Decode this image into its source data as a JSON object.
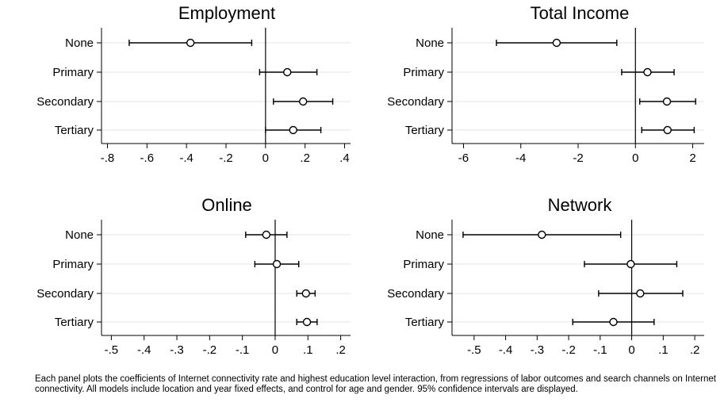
{
  "note": "Each panel plots the coefficients of Internet connectivity rate and highest education level interaction, from regressions of labor outcomes and search channels on Internet connectivity. All models include location and year fixed effects, and control for age and gender. 95% confidence intervals are displayed.",
  "chart_data": [
    {
      "type": "scatter",
      "subtype": "coefficient-plot",
      "title": "Employment",
      "categories": [
        "None",
        "Primary",
        "Secondary",
        "Tertiary"
      ],
      "estimates": [
        -0.38,
        0.11,
        0.19,
        0.14
      ],
      "ci_low": [
        -0.69,
        -0.03,
        0.04,
        0.0
      ],
      "ci_high": [
        -0.07,
        0.26,
        0.34,
        0.28
      ],
      "xlim": [
        -0.83,
        0.43
      ],
      "xticks": [
        -0.8,
        -0.6,
        -0.4,
        -0.2,
        0,
        0.2,
        0.4
      ],
      "xtick_labels": [
        "-.8",
        "-.6",
        "-.4",
        "-.2",
        "0",
        ".2",
        ".4"
      ],
      "reference_line": 0,
      "grid": "horizontal"
    },
    {
      "type": "scatter",
      "subtype": "coefficient-plot",
      "title": "Total Income",
      "categories": [
        "None",
        "Primary",
        "Secondary",
        "Tertiary"
      ],
      "estimates": [
        -2.75,
        0.42,
        1.1,
        1.12
      ],
      "ci_low": [
        -4.85,
        -0.48,
        0.15,
        0.22
      ],
      "ci_high": [
        -0.65,
        1.35,
        2.1,
        2.05
      ],
      "xlim": [
        -6.4,
        2.4
      ],
      "xticks": [
        -6,
        -4,
        -2,
        0,
        2
      ],
      "xtick_labels": [
        "-6",
        "-4",
        "-2",
        "0",
        "2"
      ],
      "reference_line": 0,
      "grid": "horizontal"
    },
    {
      "type": "scatter",
      "subtype": "coefficient-plot",
      "title": "Online",
      "categories": [
        "None",
        "Primary",
        "Secondary",
        "Tertiary"
      ],
      "estimates": [
        -0.027,
        0.005,
        0.094,
        0.097
      ],
      "ci_low": [
        -0.09,
        -0.062,
        0.066,
        0.066
      ],
      "ci_high": [
        0.036,
        0.072,
        0.122,
        0.128
      ],
      "xlim": [
        -0.53,
        0.23
      ],
      "xticks": [
        -0.5,
        -0.4,
        -0.3,
        -0.2,
        -0.1,
        0,
        0.1,
        0.2
      ],
      "xtick_labels": [
        "-.5",
        "-.4",
        "-.3",
        "-.2",
        "-.1",
        "0",
        ".1",
        ".2"
      ],
      "reference_line": 0,
      "grid": "horizontal"
    },
    {
      "type": "scatter",
      "subtype": "coefficient-plot",
      "title": "Network",
      "categories": [
        "None",
        "Primary",
        "Secondary",
        "Tertiary"
      ],
      "estimates": [
        -0.285,
        -0.003,
        0.027,
        -0.058
      ],
      "ci_low": [
        -0.535,
        -0.15,
        -0.105,
        -0.187
      ],
      "ci_high": [
        -0.035,
        0.143,
        0.162,
        0.071
      ],
      "xlim": [
        -0.57,
        0.23
      ],
      "xticks": [
        -0.5,
        -0.4,
        -0.3,
        -0.2,
        -0.1,
        0,
        0.1,
        0.2
      ],
      "xtick_labels": [
        "-.5",
        "-.4",
        "-.3",
        "-.2",
        "-.1",
        "0",
        ".1",
        ".2"
      ],
      "reference_line": 0,
      "grid": "horizontal"
    }
  ]
}
